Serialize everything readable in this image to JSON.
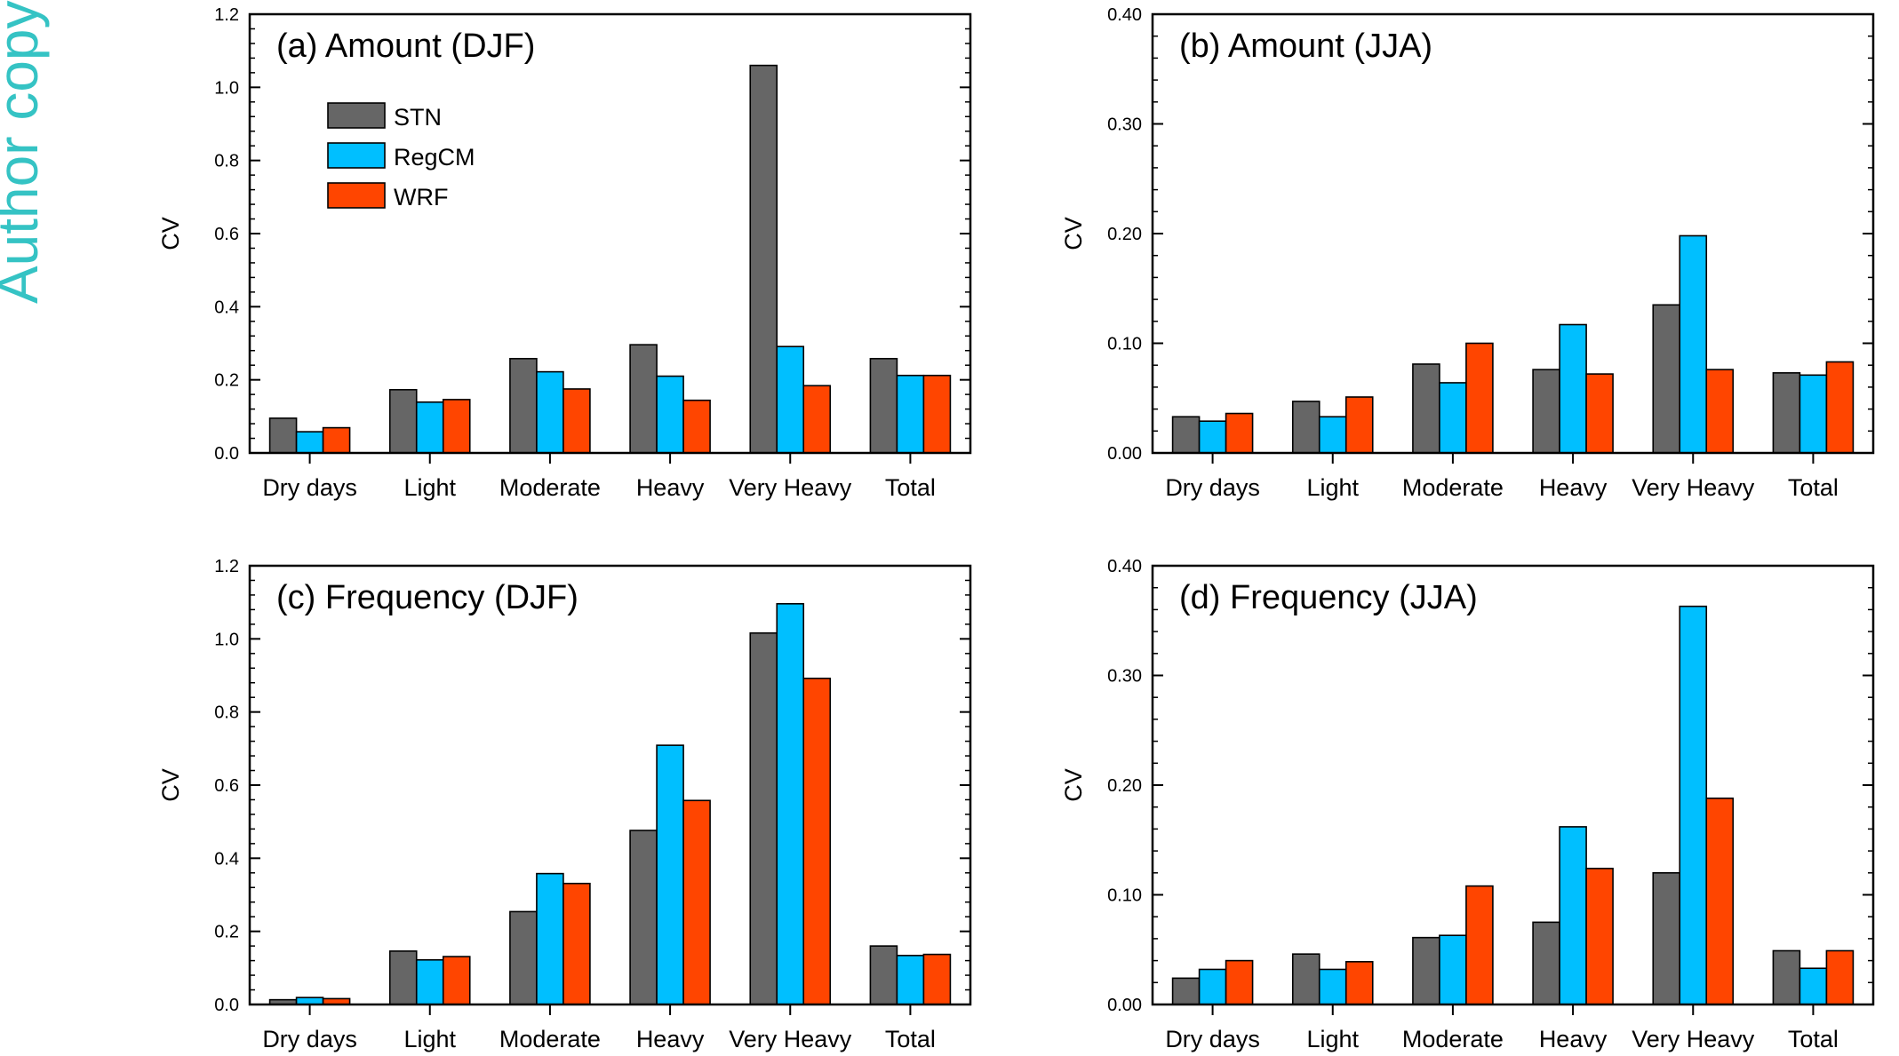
{
  "watermark": "Author copy",
  "colors": {
    "STN": "#666666",
    "RegCM": "#00bfff",
    "WRF": "#ff4500",
    "axis": "#000000"
  },
  "legend": [
    "STN",
    "RegCM",
    "WRF"
  ],
  "chart_data": [
    {
      "type": "bar",
      "title": "(a) Amount (DJF)",
      "ylabel": "CV",
      "ylim": [
        0,
        1.2
      ],
      "yticks": [
        "0.0",
        "0.2",
        "0.4",
        "0.6",
        "0.8",
        "1.0",
        "1.2"
      ],
      "categories": [
        "Dry days",
        "Light",
        "Moderate",
        "Heavy",
        "Very Heavy",
        "Total"
      ],
      "series": [
        {
          "name": "STN",
          "values": [
            0.095,
            0.173,
            0.258,
            0.296,
            1.06,
            0.258
          ]
        },
        {
          "name": "RegCM",
          "values": [
            0.058,
            0.139,
            0.222,
            0.21,
            0.291,
            0.212
          ]
        },
        {
          "name": "WRF",
          "values": [
            0.069,
            0.146,
            0.175,
            0.144,
            0.184,
            0.212
          ]
        }
      ],
      "legend_position": "top-left"
    },
    {
      "type": "bar",
      "title": "(b) Amount (JJA)",
      "ylabel": "CV",
      "ylim": [
        0,
        0.4
      ],
      "yticks": [
        "0.00",
        "0.10",
        "0.20",
        "0.30",
        "0.40"
      ],
      "categories": [
        "Dry days",
        "Light",
        "Moderate",
        "Heavy",
        "Very Heavy",
        "Total"
      ],
      "series": [
        {
          "name": "STN",
          "values": [
            0.033,
            0.047,
            0.081,
            0.076,
            0.135,
            0.073
          ]
        },
        {
          "name": "RegCM",
          "values": [
            0.029,
            0.033,
            0.064,
            0.117,
            0.198,
            0.071
          ]
        },
        {
          "name": "WRF",
          "values": [
            0.036,
            0.051,
            0.1,
            0.072,
            0.076,
            0.083
          ]
        }
      ]
    },
    {
      "type": "bar",
      "title": "(c) Frequency (DJF)",
      "ylabel": "CV",
      "ylim": [
        0,
        1.2
      ],
      "yticks": [
        "0.0",
        "0.2",
        "0.4",
        "0.6",
        "0.8",
        "1.0",
        "1.2"
      ],
      "categories": [
        "Dry days",
        "Light",
        "Moderate",
        "Heavy",
        "Very Heavy",
        "Total"
      ],
      "series": [
        {
          "name": "STN",
          "values": [
            0.013,
            0.146,
            0.254,
            0.476,
            1.016,
            0.16
          ]
        },
        {
          "name": "RegCM",
          "values": [
            0.019,
            0.122,
            0.358,
            0.709,
            1.096,
            0.134
          ]
        },
        {
          "name": "WRF",
          "values": [
            0.016,
            0.131,
            0.331,
            0.558,
            0.892,
            0.137
          ]
        }
      ]
    },
    {
      "type": "bar",
      "title": "(d) Frequency (JJA)",
      "ylabel": "CV",
      "ylim": [
        0,
        0.4
      ],
      "yticks": [
        "0.00",
        "0.10",
        "0.20",
        "0.30",
        "0.40"
      ],
      "categories": [
        "Dry days",
        "Light",
        "Moderate",
        "Heavy",
        "Very Heavy",
        "Total"
      ],
      "series": [
        {
          "name": "STN",
          "values": [
            0.024,
            0.046,
            0.061,
            0.075,
            0.12,
            0.049
          ]
        },
        {
          "name": "RegCM",
          "values": [
            0.032,
            0.032,
            0.063,
            0.162,
            0.363,
            0.033
          ]
        },
        {
          "name": "WRF",
          "values": [
            0.04,
            0.039,
            0.108,
            0.124,
            0.188,
            0.049
          ]
        }
      ]
    }
  ]
}
